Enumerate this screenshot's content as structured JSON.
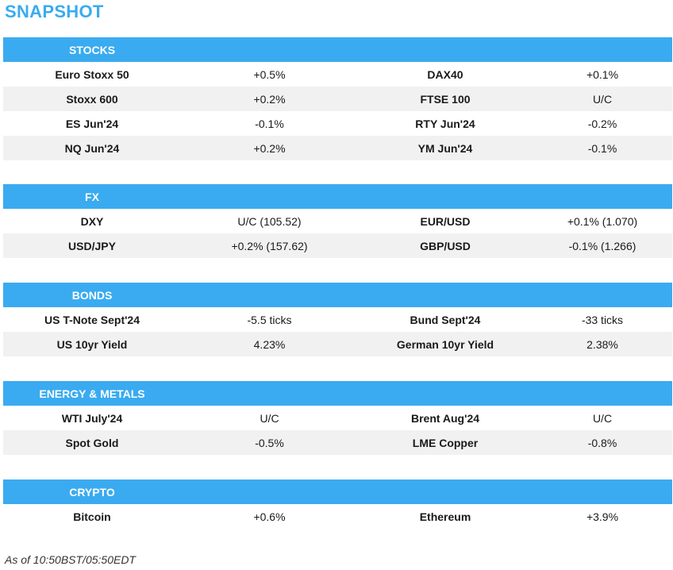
{
  "title": "SNAPSHOT",
  "sections": {
    "stocks": {
      "label": "STOCKS",
      "rows": [
        [
          "Euro Stoxx 50",
          "+0.5%",
          "DAX40",
          "+0.1%"
        ],
        [
          "Stoxx 600",
          "+0.2%",
          "FTSE 100",
          "U/C"
        ],
        [
          "ES Jun'24",
          "-0.1%",
          "RTY Jun'24",
          "-0.2%"
        ],
        [
          "NQ Jun'24",
          "+0.2%",
          "YM Jun'24",
          "-0.1%"
        ]
      ]
    },
    "fx": {
      "label": "FX",
      "rows": [
        [
          "DXY",
          "U/C (105.52)",
          "EUR/USD",
          "+0.1% (1.070)"
        ],
        [
          "USD/JPY",
          "+0.2% (157.62)",
          "GBP/USD",
          "-0.1% (1.266)"
        ]
      ]
    },
    "bonds": {
      "label": "BONDS",
      "rows": [
        [
          "US T-Note Sept'24",
          "-5.5 ticks",
          "Bund Sept'24",
          "-33 ticks"
        ],
        [
          "US 10yr Yield",
          "4.23%",
          "German 10yr Yield",
          "2.38%"
        ]
      ]
    },
    "energy_metals": {
      "label": "ENERGY & METALS",
      "rows": [
        [
          "WTI July'24",
          "U/C",
          "Brent Aug'24",
          "U/C"
        ],
        [
          "Spot Gold",
          "-0.5%",
          "LME Copper",
          "-0.8%"
        ]
      ]
    },
    "crypto": {
      "label": "CRYPTO",
      "rows": [
        [
          "Bitcoin",
          "+0.6%",
          "Ethereum",
          "+3.9%"
        ]
      ]
    }
  },
  "footer": "As of 10:50BST/05:50EDT",
  "colors": {
    "accent": "#3aabf0",
    "row_alt": "#f1f1f1"
  }
}
